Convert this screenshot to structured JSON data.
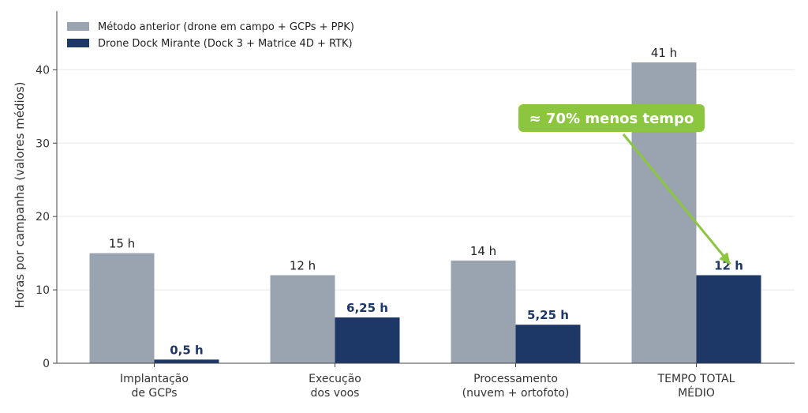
{
  "chart_data": {
    "type": "bar",
    "categories": [
      [
        "Implantação",
        "de GCPs"
      ],
      [
        "Execução",
        "dos voos"
      ],
      [
        "Processamento",
        "(nuvem + ortofoto)"
      ],
      [
        "TEMPO TOTAL",
        "MÉDIO"
      ]
    ],
    "series": [
      {
        "name": "Método anterior (drone em campo + GCPs + PPK)",
        "values": [
          15,
          12,
          14,
          41
        ],
        "labels": [
          "15 h",
          "12 h",
          "14 h",
          "41 h"
        ],
        "color": "#9aa4b1"
      },
      {
        "name": "Drone Dock Mirante (Dock 3 + Matrice 4D + RTK)",
        "values": [
          0.5,
          6.25,
          5.25,
          12
        ],
        "labels": [
          "0,5 h",
          "6,25 h",
          "5,25 h",
          "12 h"
        ],
        "color": "#1d3766"
      }
    ],
    "ylabel": "Horas por campanha (valores médios)",
    "ylim": [
      0,
      48
    ],
    "yticks": [
      0,
      10,
      20,
      30,
      40
    ],
    "grid": "horizontal",
    "legend_position": "top-left",
    "annotation": {
      "text": "≈ 70% menos tempo",
      "color": "#8cc63f"
    }
  }
}
